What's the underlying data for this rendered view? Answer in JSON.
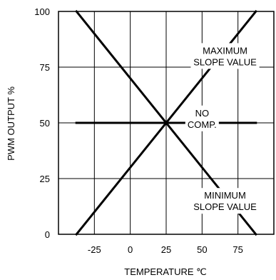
{
  "chart_data": {
    "type": "line",
    "title": "",
    "xlabel": "TEMPERATURE ℃",
    "ylabel": "PWM OUTPUT %",
    "xlim": [
      -50,
      100
    ],
    "ylim": [
      0,
      100
    ],
    "x_ticks": [
      -25,
      0,
      25,
      50,
      75
    ],
    "y_ticks": [
      0,
      25,
      50,
      75,
      100
    ],
    "grid": true,
    "series": [
      {
        "x": [
          -37.5,
          87.5
        ],
        "y": [
          100,
          0
        ]
      },
      {
        "x": [
          -37.5,
          87.5
        ],
        "y": [
          0,
          100
        ]
      },
      {
        "x": [
          -37.5,
          87.5
        ],
        "y": [
          50,
          50
        ]
      }
    ],
    "annotations": [
      {
        "lines": [
          "MAXIMUM",
          "SLOPE VALUE"
        ],
        "x": 66,
        "y": 80
      },
      {
        "lines": [
          "NO",
          "COMP."
        ],
        "x": 50,
        "y": 52
      },
      {
        "lines": [
          "MINIMUM",
          "SLOPE VALUE"
        ],
        "x": 66,
        "y": 15
      }
    ]
  }
}
